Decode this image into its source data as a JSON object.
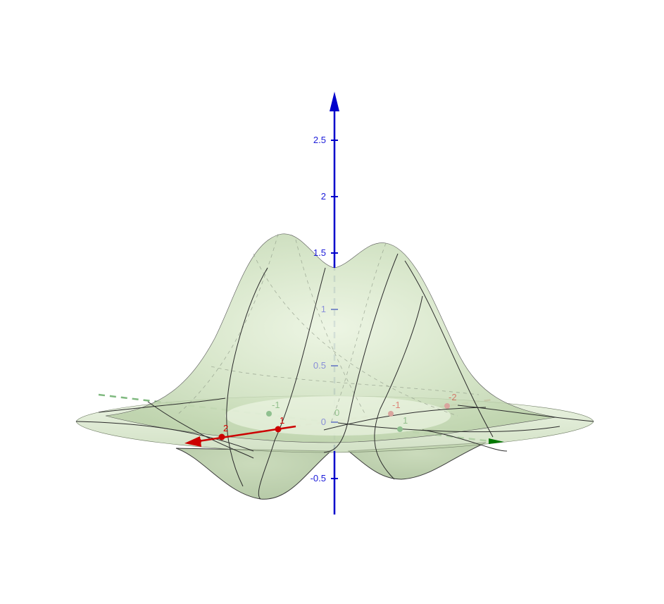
{
  "colors": {
    "z_axis": "#0000cc",
    "x_axis": "#cc0000",
    "y_axis": "#007700",
    "surface_fill": "#c9ddb8",
    "surface_edge": "#2b2b2b",
    "background": "#ffffff"
  },
  "axes": {
    "z": {
      "ticks_front": [
        {
          "value": 2.5,
          "label": "2.5"
        },
        {
          "value": 2,
          "label": "2"
        },
        {
          "value": 1.5,
          "label": "1.5"
        },
        {
          "value": -0.5,
          "label": "-0.5"
        }
      ],
      "ticks_hidden": [
        {
          "value": 1,
          "label": "1"
        },
        {
          "value": 0.5,
          "label": "0.5"
        },
        {
          "value": 0,
          "label": "0"
        }
      ]
    },
    "x": {
      "ticks_front": [
        {
          "value": 1,
          "label": "1"
        },
        {
          "value": 2,
          "label": "2"
        }
      ],
      "ticks_hidden": [
        {
          "value": -1,
          "label": "-1"
        },
        {
          "value": -2,
          "label": "-2"
        }
      ]
    },
    "y": {
      "ticks_hidden": [
        {
          "value": -1,
          "label": "-1"
        },
        {
          "value": 0,
          "label": "0"
        },
        {
          "value": 1,
          "label": "1"
        }
      ]
    }
  },
  "surface": {
    "kind": "3d-surface",
    "shape": "twin-peaked bump with surrounding ripple"
  }
}
